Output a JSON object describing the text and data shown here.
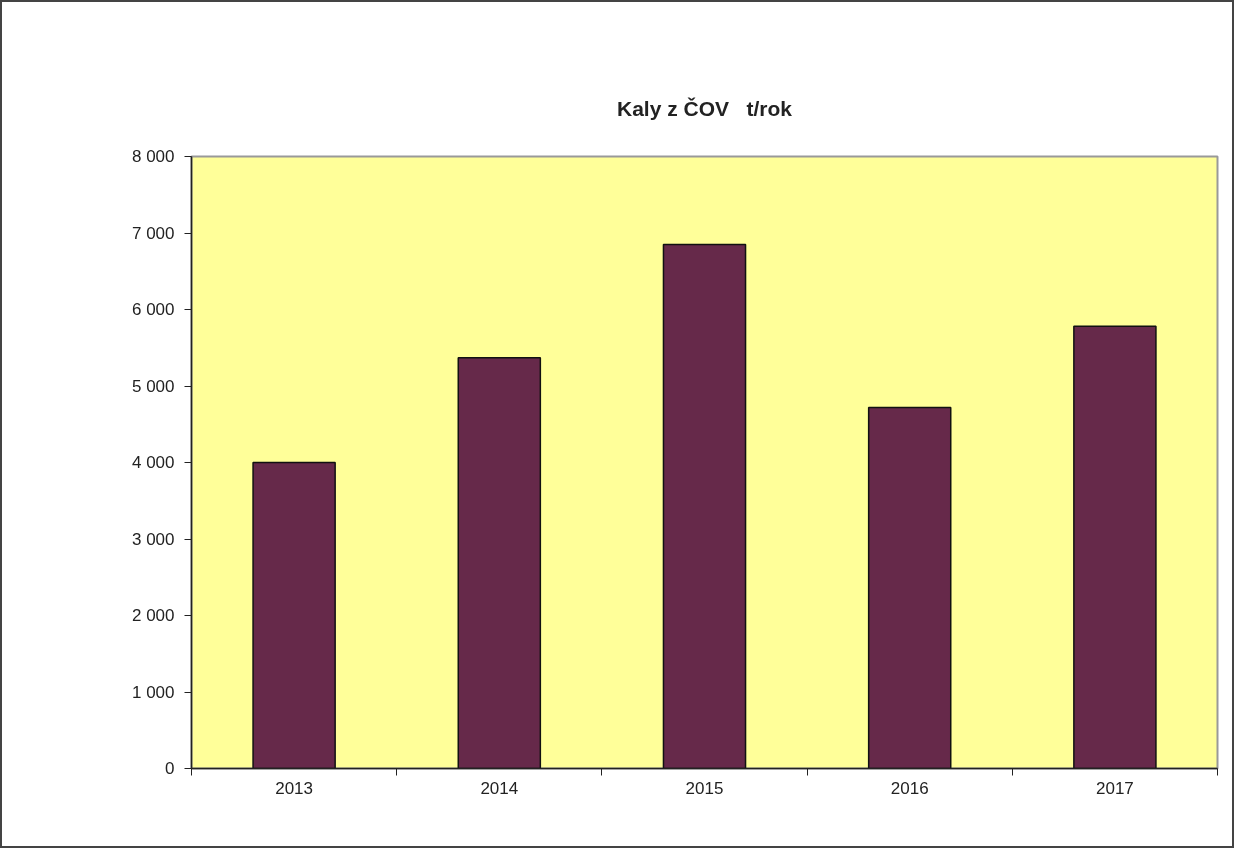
{
  "chart_data": {
    "type": "bar",
    "title": "Kaly z ČOV   t/rok",
    "categories": [
      "2013",
      "2014",
      "2015",
      "2016",
      "2017"
    ],
    "values": [
      4000,
      5370,
      6850,
      4720,
      5780
    ],
    "color": "#66294a",
    "ylim": [
      0,
      8000
    ],
    "yticks": [
      0,
      {
        "value": 1000,
        "label": "1 000"
      },
      {
        "value": 2000,
        "label": "2 000"
      },
      {
        "value": 3000,
        "label": "3 000"
      },
      {
        "value": 4000,
        "label": "4 000"
      },
      {
        "value": 5000,
        "label": "5 000"
      },
      {
        "value": 6000,
        "label": "6 000"
      },
      {
        "value": 7000,
        "label": "7 000"
      },
      {
        "value": 8000,
        "label": "8 000"
      }
    ]
  }
}
